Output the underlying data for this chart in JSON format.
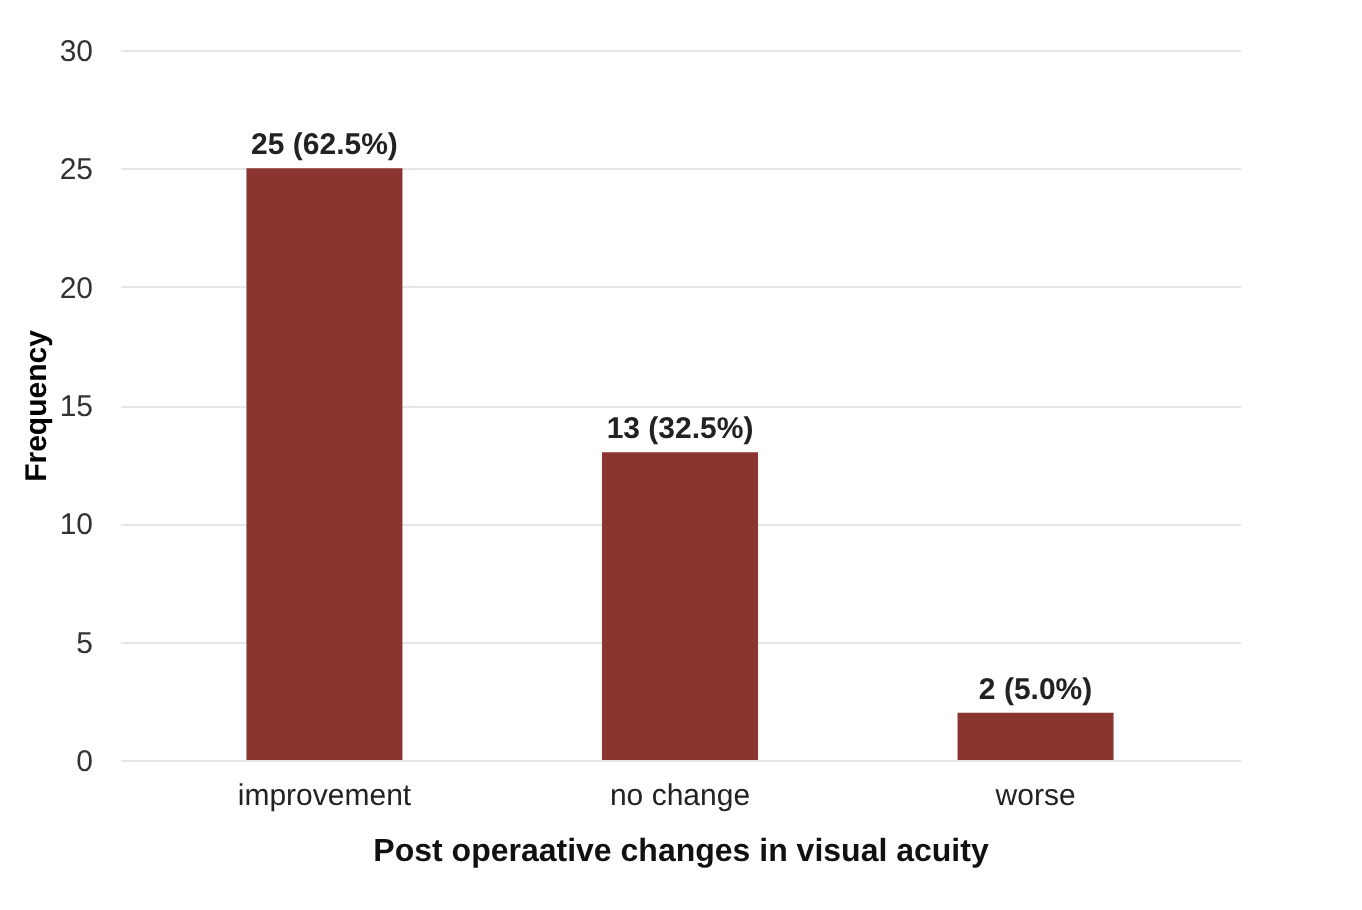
{
  "chart_data": {
    "type": "bar",
    "xlabel": "Post operaative changes in visual acuity",
    "ylabel": "Frequency",
    "categories": [
      "improvement",
      "no change",
      "worse"
    ],
    "values": [
      25,
      13,
      2
    ],
    "value_labels": [
      "25 (62.5%)",
      "13 (32.5%)",
      "2 (5.0%)"
    ],
    "color": "#8b3530",
    "ylim": [
      0,
      30
    ],
    "yticks": [
      0,
      5,
      10,
      15,
      20,
      25,
      30
    ],
    "grid": "y"
  }
}
